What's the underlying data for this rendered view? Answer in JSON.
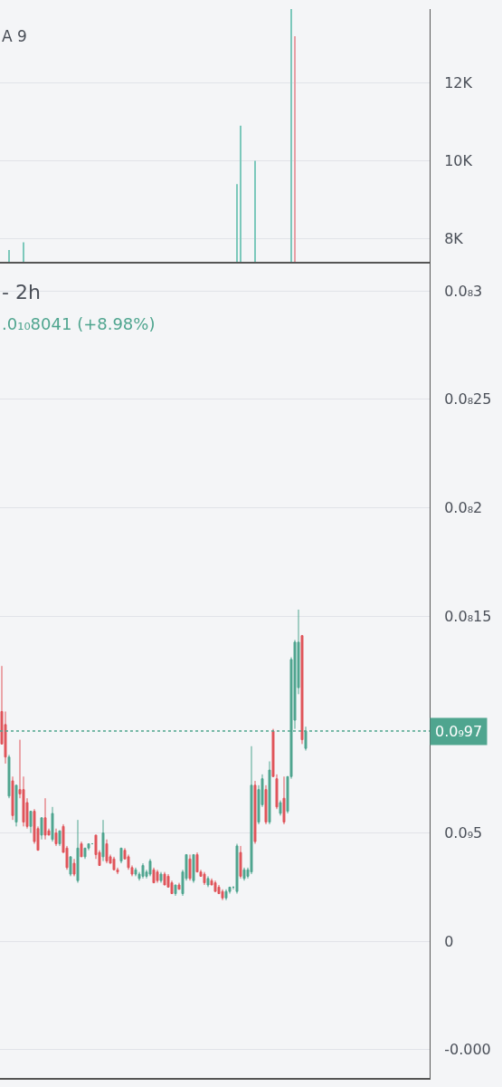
{
  "chart_data": [
    {
      "type": "bar",
      "annotations": [
        "A 9"
      ],
      "categories": [
        null,
        null,
        null,
        null,
        null,
        null,
        null,
        null,
        null,
        null,
        null,
        null,
        null,
        null,
        null,
        null,
        null,
        null,
        null,
        null,
        null,
        null,
        null,
        null,
        null,
        null,
        null,
        null,
        null,
        null,
        null,
        null,
        null,
        null,
        null,
        null,
        null,
        null,
        null,
        null,
        null,
        null,
        null,
        null,
        null,
        null,
        null,
        null,
        null,
        null,
        null,
        null,
        null,
        null,
        null,
        null,
        null,
        null,
        null,
        null,
        null,
        null,
        null,
        null,
        null,
        null,
        null,
        null,
        null,
        null,
        null,
        null,
        null,
        null,
        null,
        null,
        null,
        null,
        null,
        null,
        null,
        null,
        null,
        null,
        null,
        null,
        null,
        null,
        null,
        null,
        null,
        null,
        null,
        null,
        null,
        null,
        null,
        null,
        null,
        null,
        null,
        null,
        null,
        null,
        null,
        null,
        null,
        null,
        null,
        null,
        null,
        null,
        null,
        null,
        null,
        null,
        null,
        null,
        null
      ],
      "values": [
        null,
        null,
        7700,
        null,
        null,
        null,
        7900,
        null,
        null,
        null,
        null,
        null,
        null,
        null,
        null,
        null,
        null,
        null,
        null,
        null,
        null,
        null,
        null,
        null,
        null,
        null,
        null,
        null,
        null,
        null,
        null,
        null,
        null,
        null,
        null,
        null,
        null,
        null,
        null,
        null,
        null,
        null,
        null,
        null,
        null,
        null,
        null,
        null,
        null,
        null,
        null,
        null,
        null,
        null,
        null,
        null,
        null,
        null,
        null,
        null,
        null,
        null,
        null,
        null,
        null,
        9400,
        10900,
        null,
        null,
        null,
        10000,
        null,
        null,
        null,
        null,
        null,
        null,
        null,
        null,
        null,
        13900,
        13200,
        null,
        null,
        null,
        null,
        null,
        null,
        null,
        null,
        null,
        null,
        null,
        null,
        null,
        null,
        null,
        null,
        null,
        null,
        null,
        null,
        null,
        null,
        null,
        null,
        null,
        null,
        null,
        null,
        null,
        null,
        null,
        null,
        null,
        null,
        null,
        null,
        null
      ],
      "colors": [
        null,
        null,
        "#7cc8bb",
        null,
        null,
        null,
        "#7cc8bb",
        null,
        null,
        null,
        null,
        null,
        null,
        null,
        null,
        null,
        null,
        null,
        null,
        null,
        null,
        null,
        null,
        null,
        null,
        null,
        null,
        null,
        null,
        null,
        null,
        null,
        null,
        null,
        null,
        null,
        null,
        null,
        null,
        null,
        null,
        null,
        null,
        null,
        null,
        null,
        null,
        null,
        null,
        null,
        null,
        null,
        null,
        null,
        null,
        null,
        null,
        null,
        null,
        null,
        null,
        null,
        null,
        null,
        null,
        "#7cc8bb",
        "#7cc8bb",
        null,
        null,
        null,
        "#7cc8bb",
        null,
        null,
        null,
        null,
        null,
        null,
        null,
        null,
        null,
        "#7cc8bb",
        "#e8a0a6",
        null,
        null,
        null,
        null,
        null,
        null,
        null,
        null,
        null,
        null,
        null,
        null,
        null,
        null,
        null,
        null,
        null,
        null,
        null,
        null,
        null,
        null,
        null,
        null,
        null,
        null,
        null,
        null,
        null,
        null,
        null,
        null,
        null,
        null,
        null,
        null,
        null
      ],
      "ylim": [
        7400,
        13900
      ],
      "yticks": [
        {
          "value": 8000,
          "label": "8K"
        },
        {
          "value": 10000,
          "label": "10K"
        },
        {
          "value": 12000,
          "label": "12K"
        }
      ],
      "grid": "y",
      "tick_labels": "y"
    },
    {
      "type": "candlestick",
      "title": "- 2h",
      "subtitle": ".0₁₀8041 (+8.98%)",
      "categories": [
        null,
        null,
        null,
        null,
        null,
        null,
        null,
        null,
        null,
        null,
        null,
        null,
        null,
        null,
        null,
        null,
        null,
        null,
        null,
        null,
        null,
        null,
        null,
        null,
        null,
        null,
        null,
        null,
        null,
        null,
        null,
        null,
        null,
        null,
        null,
        null,
        null,
        null,
        null,
        null,
        null,
        null,
        null,
        null,
        null,
        null,
        null,
        null,
        null,
        null,
        null,
        null,
        null,
        null,
        null,
        null,
        null,
        null,
        null,
        null,
        null,
        null,
        null,
        null,
        null,
        null,
        null,
        null,
        null,
        null,
        null,
        null,
        null,
        null,
        null,
        null,
        null,
        null,
        null,
        null,
        null,
        null,
        null,
        null,
        null,
        null,
        null,
        null,
        null,
        null,
        null,
        null,
        null,
        null,
        null,
        null,
        null,
        null,
        null,
        null,
        null,
        null,
        null,
        null,
        null,
        null,
        null,
        null,
        null,
        null,
        null,
        null,
        null,
        null,
        null,
        null,
        null,
        null,
        null
      ],
      "ohlc": [
        [
          1.06e-09,
          1.27e-09,
          9.1e-10,
          9.1e-10
        ],
        [
          1e-09,
          1.06e-09,
          8.2e-10,
          8.5e-10
        ],
        [
          6.7e-10,
          8.6e-10,
          6.6e-10,
          8.5e-10
        ],
        [
          7.4e-10,
          7.6e-10,
          5.6e-10,
          5.8e-10
        ],
        [
          5.5e-10,
          7.2e-10,
          5.3e-10,
          7.2e-10
        ],
        [
          7e-10,
          9.3e-10,
          6.6e-10,
          6.8e-10
        ],
        [
          7e-10,
          7.6e-10,
          5.3e-10,
          5.5e-10
        ],
        [
          6.4e-10,
          6.6e-10,
          5.2e-10,
          5.3e-10
        ],
        [
          5.3e-10,
          6e-10,
          5e-10,
          6e-10
        ],
        [
          6e-10,
          6.1e-10,
          4.5e-10,
          4.6e-10
        ],
        [
          5.2e-10,
          5.3e-10,
          4.2e-10,
          4.2e-10
        ],
        [
          4.9e-10,
          5.7e-10,
          4.7e-10,
          5.7e-10
        ],
        [
          5.7e-10,
          6.6e-10,
          4.7e-10,
          4.9e-10
        ],
        [
          5.1e-10,
          5.2e-10,
          4.9e-10,
          4.9e-10
        ],
        [
          4.7e-10,
          6.2e-10,
          4.6e-10,
          5.9e-10
        ],
        [
          5e-10,
          5.2e-10,
          4.4e-10,
          4.5e-10
        ],
        [
          4.5e-10,
          5.1e-10,
          4.4e-10,
          5.1e-10
        ],
        [
          5.3e-10,
          5.4e-10,
          4.1e-10,
          4.1e-10
        ],
        [
          4.3e-10,
          4.4e-10,
          3.3e-10,
          3.4e-10
        ],
        [
          3.1e-10,
          3.9e-10,
          3e-10,
          3.9e-10
        ],
        [
          3.6e-10,
          3.8e-10,
          3e-10,
          3.1e-10
        ],
        [
          2.8e-10,
          5.6e-10,
          2.7e-10,
          4.3e-10
        ],
        [
          4.5e-10,
          4.6e-10,
          3.9e-10,
          3.9e-10
        ],
        [
          3.9e-10,
          4.3e-10,
          3.8e-10,
          4.3e-10
        ],
        [
          4.3e-10,
          4.5e-10,
          4.2e-10,
          4.5e-10
        ],
        [
          4.5e-10,
          4.5e-10,
          4.5e-10,
          4.5e-10
        ],
        [
          4.9e-10,
          4.9e-10,
          3.8e-10,
          4e-10
        ],
        [
          4.1e-10,
          4.2e-10,
          3.5e-10,
          3.5e-10
        ],
        [
          3.9e-10,
          5.6e-10,
          3.7e-10,
          5e-10
        ],
        [
          4.5e-10,
          4.7e-10,
          3.6e-10,
          3.7e-10
        ],
        [
          3.9e-10,
          4e-10,
          3.6e-10,
          3.6e-10
        ],
        [
          3.8e-10,
          3.9e-10,
          3.3e-10,
          3.3e-10
        ],
        [
          3.3e-10,
          3.4e-10,
          3.1e-10,
          3.2e-10
        ],
        [
          3.7e-10,
          4.3e-10,
          3.6e-10,
          4.3e-10
        ],
        [
          4.2e-10,
          4.3e-10,
          3.8e-10,
          3.8e-10
        ],
        [
          3.9e-10,
          4e-10,
          3.3e-10,
          3.4e-10
        ],
        [
          3.4e-10,
          3.5e-10,
          3e-10,
          3.1e-10
        ],
        [
          3.1e-10,
          3.4e-10,
          3e-10,
          3.3e-10
        ],
        [
          2.9e-10,
          3.2e-10,
          2.8e-10,
          3.1e-10
        ],
        [
          3e-10,
          3.6e-10,
          2.9e-10,
          3.5e-10
        ],
        [
          3e-10,
          3.3e-10,
          2.9e-10,
          3.2e-10
        ],
        [
          3.1e-10,
          3.8e-10,
          3e-10,
          3.7e-10
        ],
        [
          3.3e-10,
          3.4e-10,
          2.7e-10,
          2.7e-10
        ],
        [
          3.2e-10,
          3.3e-10,
          2.7e-10,
          2.8e-10
        ],
        [
          2.8e-10,
          3.2e-10,
          2.7e-10,
          3.1e-10
        ],
        [
          3.1e-10,
          3.2e-10,
          2.6e-10,
          2.6e-10
        ],
        [
          3e-10,
          3.1e-10,
          2.5e-10,
          2.5e-10
        ],
        [
          2.7e-10,
          2.8e-10,
          2.2e-10,
          2.2e-10
        ],
        [
          2.2e-10,
          2.6e-10,
          2.1e-10,
          2.6e-10
        ],
        [
          2.6e-10,
          2.7e-10,
          2.4e-10,
          2.4e-10
        ],
        [
          2.2e-10,
          3.3e-10,
          2.1e-10,
          3.2e-10
        ],
        [
          2.9e-10,
          4e-10,
          2.8e-10,
          4e-10
        ],
        [
          3.8e-10,
          4e-10,
          2.8e-10,
          2.9e-10
        ],
        [
          2.8e-10,
          4e-10,
          2.7e-10,
          4e-10
        ],
        [
          4e-10,
          4.1e-10,
          3.2e-10,
          3.2e-10
        ],
        [
          3.2e-10,
          3.3e-10,
          3e-10,
          3e-10
        ],
        [
          3.1e-10,
          3.2e-10,
          2.6e-10,
          2.7e-10
        ],
        [
          2.6e-10,
          3e-10,
          2.5e-10,
          2.9e-10
        ],
        [
          2.8e-10,
          2.9e-10,
          2.6e-10,
          2.6e-10
        ],
        [
          2.7e-10,
          2.8e-10,
          2.3e-10,
          2.3e-10
        ],
        [
          2.5e-10,
          2.6e-10,
          2.2e-10,
          2.2e-10
        ],
        [
          2.3e-10,
          2.4e-10,
          1.9e-10,
          2e-10
        ],
        [
          2e-10,
          2.4e-10,
          1.9e-10,
          2.3e-10
        ],
        [
          2.3e-10,
          2.5e-10,
          2.2e-10,
          2.5e-10
        ],
        [
          2.5e-10,
          2.5e-10,
          2.4e-10,
          2.5e-10
        ],
        [
          2.3e-10,
          4.5e-10,
          2.2e-10,
          4.4e-10
        ],
        [
          4.1e-10,
          4.4e-10,
          2.9e-10,
          3e-10
        ],
        [
          2.9e-10,
          3.4e-10,
          2.8e-10,
          3.3e-10
        ],
        [
          3e-10,
          3.4e-10,
          2.9e-10,
          3.3e-10
        ],
        [
          3.2e-10,
          9e-10,
          3.1e-10,
          7.2e-10
        ],
        [
          7.2e-10,
          7.4e-10,
          4.5e-10,
          4.6e-10
        ],
        [
          5.5e-10,
          7.2e-10,
          5.4e-10,
          7e-10
        ],
        [
          6.3e-10,
          7.7e-10,
          6.2e-10,
          7.5e-10
        ],
        [
          7e-10,
          7.2e-10,
          5.4e-10,
          5.5e-10
        ],
        [
          5.5e-10,
          8.3e-10,
          5.4e-10,
          7.9e-10
        ],
        [
          9.7e-10,
          9.8e-10,
          7.6e-10,
          7.6e-10
        ],
        [
          7.5e-10,
          7.7e-10,
          6.1e-10,
          6.2e-10
        ],
        [
          5.9e-10,
          6.5e-10,
          5.8e-10,
          6.4e-10
        ],
        [
          6.6e-10,
          7.6e-10,
          5.4e-10,
          5.5e-10
        ],
        [
          6e-10,
          7.6e-10,
          5.9e-10,
          7.6e-10
        ],
        [
          7.6e-10,
          1.31e-09,
          7.5e-10,
          1.3e-09
        ],
        [
          1.02e-09,
          1.39e-09,
          9.8e-10,
          1.38e-09
        ],
        [
          1.17e-09,
          1.53e-09,
          1.14e-09,
          1.38e-09
        ],
        [
          1.41e-09,
          1.41e-09,
          9.1e-10,
          9.3e-10
        ],
        [
          8.9e-10,
          9.9e-10,
          8.8e-10,
          9.7e-10
        ],
        null,
        null,
        null,
        null,
        null,
        null,
        null,
        null,
        null,
        null,
        null,
        null,
        null,
        null,
        null,
        null,
        null,
        null,
        null,
        null,
        null,
        null,
        null,
        null,
        null,
        null,
        null,
        null,
        null,
        null,
        null,
        null,
        null,
        null
      ],
      "ref_lines": [
        {
          "axis": "y",
          "value": 9.7e-10,
          "label": "0.0₉97",
          "color": "#4fa58f",
          "line_style": "dotted"
        }
      ],
      "ylim": [
        -6.3e-10,
        3.13e-09
      ],
      "yticks": [
        {
          "value": -5e-10,
          "label": "-0.000"
        },
        0,
        {
          "value": 5e-10,
          "label": "0.0₉5"
        },
        {
          "value": 1.5e-09,
          "label": "0.0₈15"
        },
        {
          "value": 2e-09,
          "label": "0.0₈2"
        },
        {
          "value": 2.5e-09,
          "label": "0.0₈25"
        },
        {
          "value": 3e-09,
          "label": "0.0₈3"
        }
      ],
      "grid": "y",
      "tick_labels": "y"
    }
  ]
}
